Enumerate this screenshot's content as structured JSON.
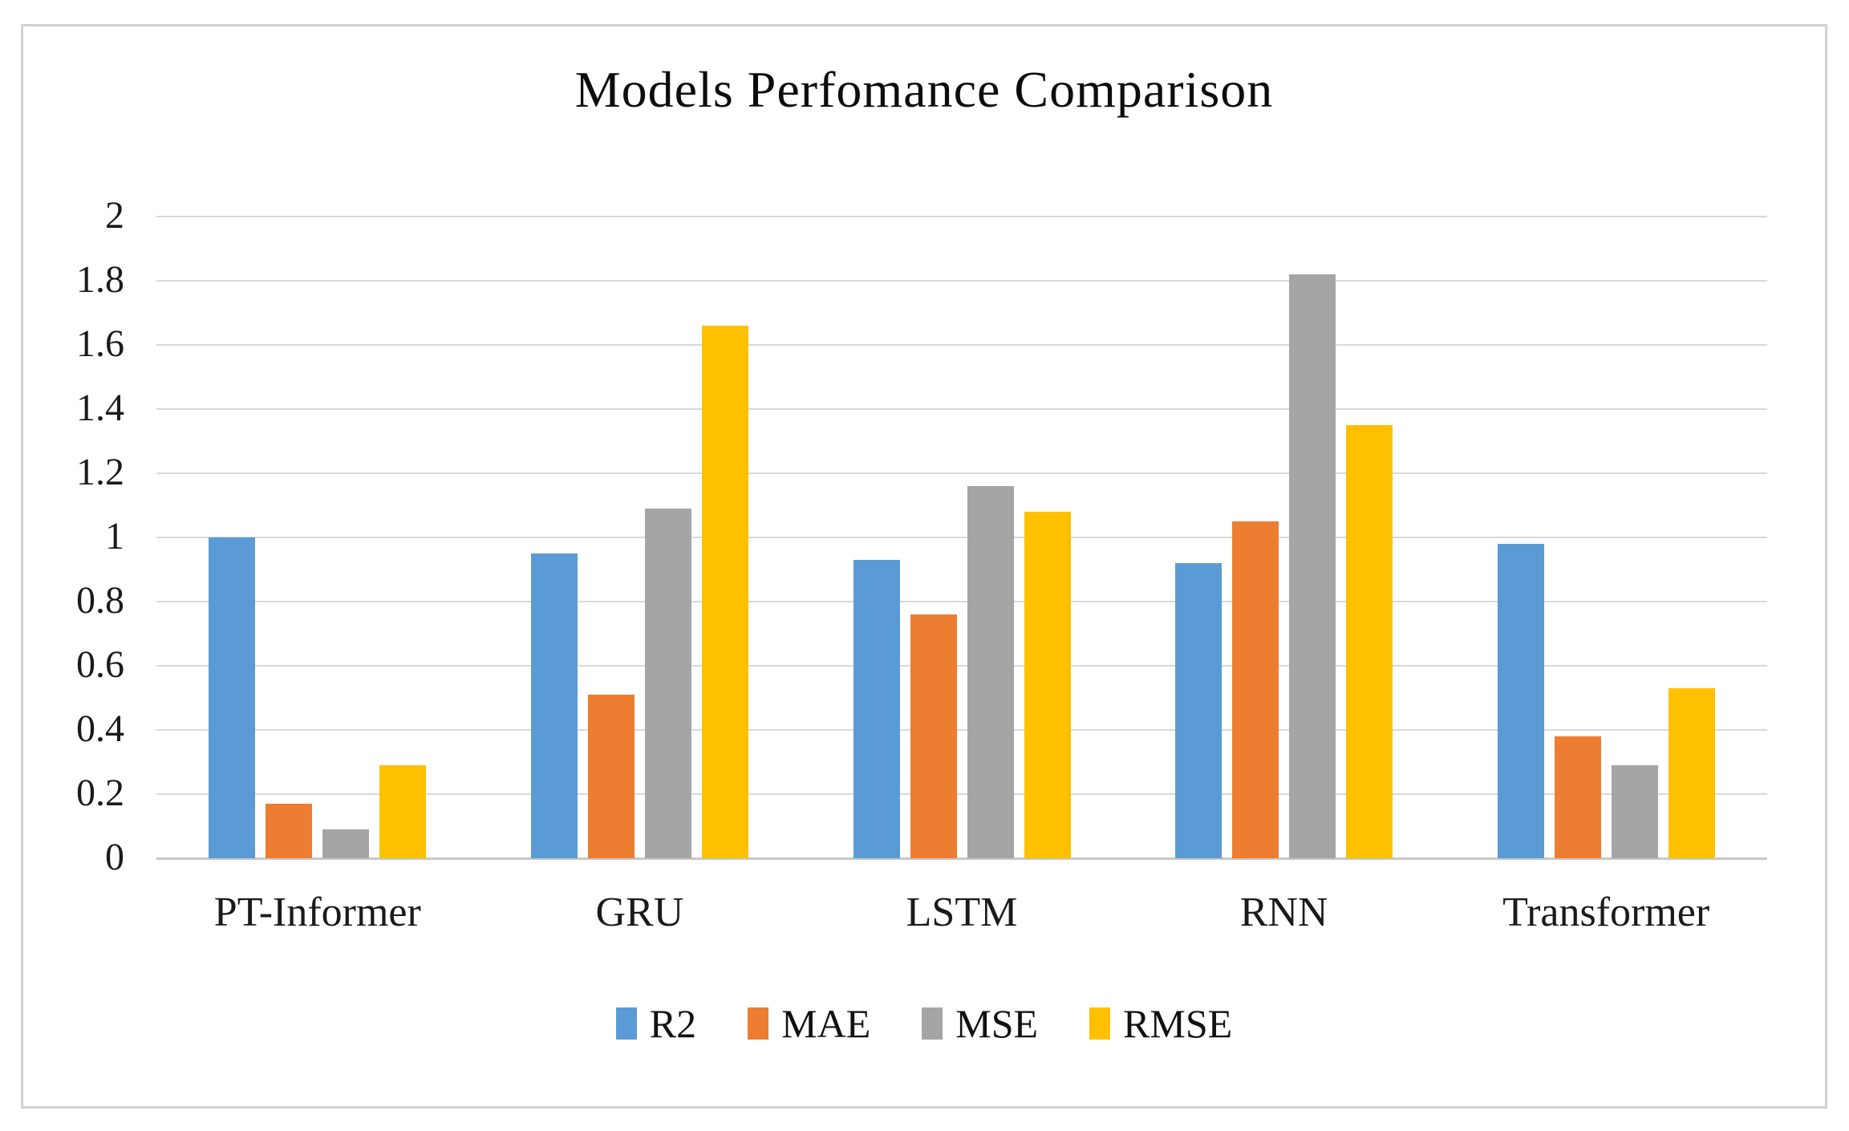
{
  "chart_data": {
    "type": "bar",
    "title": "Models Perfomance Comparison",
    "categories": [
      "PT-Informer",
      "GRU",
      "LSTM",
      "RNN",
      "Transformer"
    ],
    "series": [
      {
        "name": "R2",
        "color": "#5B9BD5",
        "values": [
          1.0,
          0.95,
          0.93,
          0.92,
          0.98
        ]
      },
      {
        "name": "MAE",
        "color": "#ED7D31",
        "values": [
          0.17,
          0.51,
          0.76,
          1.05,
          0.38
        ]
      },
      {
        "name": "MSE",
        "color": "#A5A5A5",
        "values": [
          0.09,
          1.09,
          1.16,
          1.82,
          0.29
        ]
      },
      {
        "name": "RMSE",
        "color": "#FFC000",
        "values": [
          0.29,
          1.66,
          1.08,
          1.35,
          0.53
        ]
      }
    ],
    "ylim": [
      0,
      2
    ],
    "ytick_values": [
      0,
      0.2,
      0.4,
      0.6,
      0.8,
      1,
      1.2,
      1.4,
      1.6,
      1.8,
      2
    ],
    "ytick_labels": [
      "0",
      "0.2",
      "0.4",
      "0.6",
      "0.8",
      "1",
      "1.2",
      "1.4",
      "1.6",
      "1.8",
      "2"
    ],
    "xlabel": "",
    "ylabel": "",
    "grid": true,
    "gridline_color": "#D9D9D9",
    "axis_line_color": "#C8C8C8",
    "frame_border_color": "#D2D2D2",
    "legend_position": "bottom",
    "legend_items": [
      "R2",
      "MAE",
      "MSE",
      "RMSE"
    ]
  }
}
